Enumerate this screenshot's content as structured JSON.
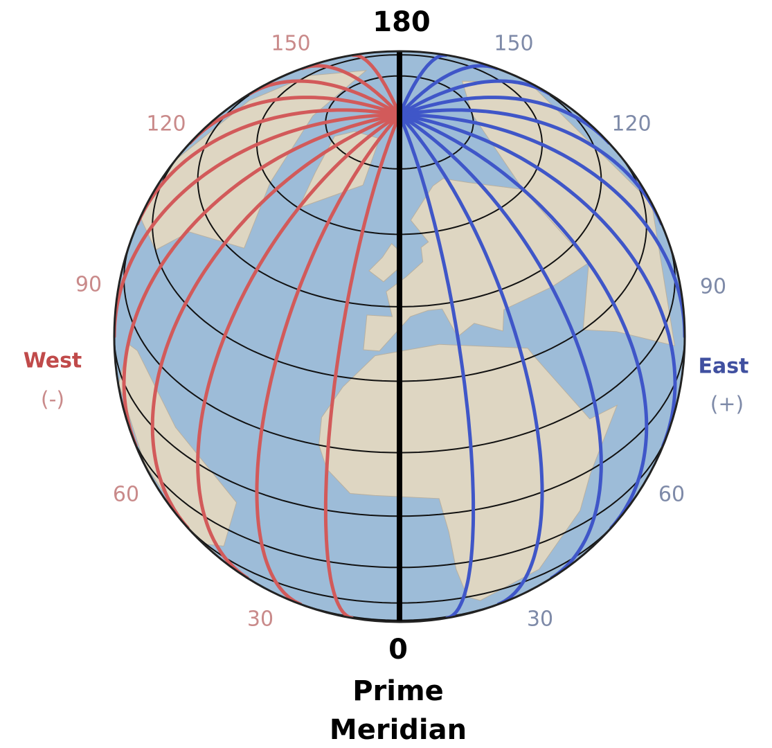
{
  "labels": {
    "top": "180",
    "west_150": "150",
    "east_150": "150",
    "west_120": "120",
    "east_120": "120",
    "west_90": "90",
    "east_90": "90",
    "west": "West",
    "west_sign": "(-)",
    "east": "East",
    "east_sign": "(+)",
    "west_60": "60",
    "east_60": "60",
    "west_30": "30",
    "east_30": "30",
    "bottom": "0",
    "prime": "Prime",
    "meridian": "Meridian"
  }
}
